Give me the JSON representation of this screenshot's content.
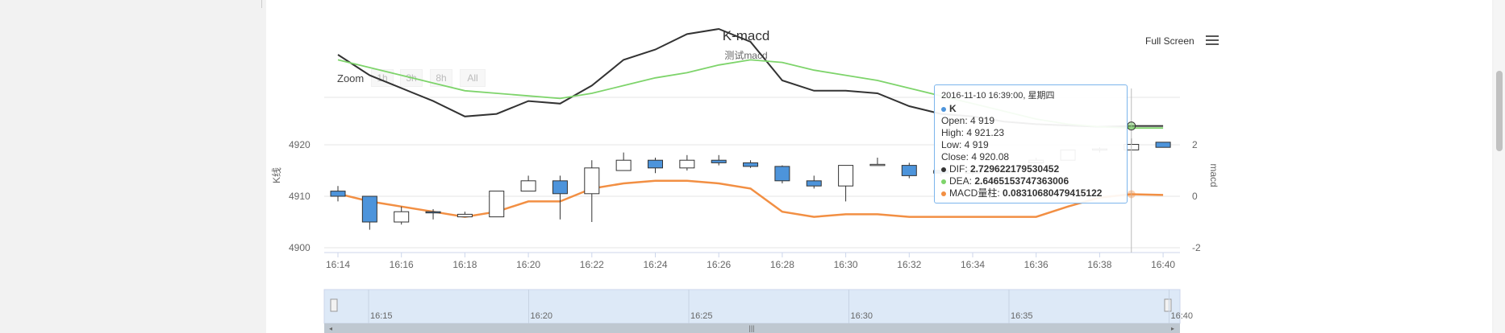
{
  "chart_data": {
    "type": "candlestick",
    "title": "K-macd",
    "subtitle": "测试macd",
    "toolbar": {
      "fullscreen_label": "Full Screen"
    },
    "zoom": {
      "label": "Zoom",
      "buttons": [
        "1h",
        "3h",
        "8h",
        "All"
      ]
    },
    "x_ticks": [
      "16:14",
      "16:16",
      "16:18",
      "16:20",
      "16:22",
      "16:24",
      "16:26",
      "16:28",
      "16:30",
      "16:32",
      "16:34",
      "16:36",
      "16:38",
      "16:40"
    ],
    "y_left": {
      "label": "K线",
      "ticks": [
        "4920",
        "4910",
        "4900"
      ],
      "range": [
        4900,
        4920
      ]
    },
    "y_right": {
      "label": "macd",
      "ticks": [
        "2",
        "0",
        "-2"
      ],
      "range": [
        -2,
        2
      ]
    },
    "candles": [
      {
        "time": "16:14",
        "open": 4911,
        "high": 4912,
        "low": 4909,
        "close": 4910
      },
      {
        "time": "16:15",
        "open": 4910,
        "high": 4910,
        "low": 4903.5,
        "close": 4905
      },
      {
        "time": "16:16",
        "open": 4905,
        "high": 4908,
        "low": 4904.5,
        "close": 4907
      },
      {
        "time": "16:17",
        "open": 4907,
        "high": 4907.5,
        "low": 4905.5,
        "close": 4906.8
      },
      {
        "time": "16:18",
        "open": 4906,
        "high": 4907,
        "low": 4906,
        "close": 4906.5
      },
      {
        "time": "16:19",
        "open": 4906,
        "high": 4911,
        "low": 4906,
        "close": 4911
      },
      {
        "time": "16:20",
        "open": 4911,
        "high": 4914,
        "low": 4911,
        "close": 4913
      },
      {
        "time": "16:21",
        "open": 4913,
        "high": 4914,
        "low": 4905.5,
        "close": 4910.5
      },
      {
        "time": "16:22",
        "open": 4910.5,
        "high": 4917,
        "low": 4905,
        "close": 4915.5
      },
      {
        "time": "16:23",
        "open": 4915,
        "high": 4918.5,
        "low": 4915,
        "close": 4917
      },
      {
        "time": "16:24",
        "open": 4917,
        "high": 4917.5,
        "low": 4914.5,
        "close": 4915.5
      },
      {
        "time": "16:25",
        "open": 4915.5,
        "high": 4918,
        "low": 4915,
        "close": 4917
      },
      {
        "time": "16:26",
        "open": 4917,
        "high": 4918,
        "low": 4916,
        "close": 4916.5
      },
      {
        "time": "16:27",
        "open": 4916.5,
        "high": 4917,
        "low": 4915.5,
        "close": 4915.8
      },
      {
        "time": "16:28",
        "open": 4915.8,
        "high": 4916,
        "low": 4912.5,
        "close": 4913
      },
      {
        "time": "16:29",
        "open": 4913,
        "high": 4914,
        "low": 4911.5,
        "close": 4912
      },
      {
        "time": "16:30",
        "open": 4912,
        "high": 4916,
        "low": 4909,
        "close": 4916
      },
      {
        "time": "16:31",
        "open": 4916,
        "high": 4917.5,
        "low": 4916,
        "close": 4916.2
      },
      {
        "time": "16:32",
        "open": 4916,
        "high": 4916.5,
        "low": 4913.5,
        "close": 4914
      },
      {
        "time": "16:33",
        "open": 4915,
        "high": 4915.5,
        "low": 4914,
        "close": 4914.5
      },
      {
        "time": "16:34",
        "open": 4914.5,
        "high": 4916,
        "low": 4914,
        "close": 4915
      },
      {
        "time": "16:35",
        "open": 4915,
        "high": 4916,
        "low": 4914.5,
        "close": 4915.5
      },
      {
        "time": "16:36",
        "open": 4916.5,
        "high": 4917.5,
        "low": 4916.5,
        "close": 4917
      },
      {
        "time": "16:37",
        "open": 4917,
        "high": 4919,
        "low": 4917,
        "close": 4919
      },
      {
        "time": "16:38",
        "open": 4919,
        "high": 4919.5,
        "low": 4918.5,
        "close": 4919.2
      },
      {
        "time": "16:39",
        "open": 4919,
        "high": 4921.23,
        "low": 4919,
        "close": 4920.08
      },
      {
        "time": "16:40",
        "open": 4920.5,
        "high": 4920.5,
        "low": 4919.5,
        "close": 4919.5
      }
    ],
    "dif": [
      5.5,
      4.7,
      4.2,
      3.7,
      3.1,
      3.2,
      3.7,
      3.6,
      4.3,
      5.3,
      5.7,
      6.3,
      6.5,
      6.0,
      4.5,
      4.1,
      4.1,
      4.0,
      3.5,
      3.2,
      3.1,
      2.9,
      2.8,
      2.75,
      2.7,
      2.73,
      2.73
    ],
    "dea": [
      5.3,
      5.0,
      4.7,
      4.4,
      4.1,
      4.0,
      3.9,
      3.8,
      4.0,
      4.3,
      4.6,
      4.8,
      5.1,
      5.3,
      5.2,
      4.9,
      4.7,
      4.5,
      4.2,
      3.9,
      3.6,
      3.3,
      3.0,
      2.8,
      2.7,
      2.65,
      2.65
    ],
    "macd": [
      0.1,
      -0.2,
      -0.4,
      -0.6,
      -0.8,
      -0.6,
      -0.2,
      -0.2,
      0.3,
      0.5,
      0.6,
      0.6,
      0.5,
      0.3,
      -0.6,
      -0.8,
      -0.7,
      -0.7,
      -0.8,
      -0.8,
      -0.8,
      -0.8,
      -0.8,
      -0.4,
      -0.05,
      0.08,
      0.05
    ],
    "colors": {
      "up": "#ffffff",
      "down": "#4d94db",
      "dif": "#333333",
      "dea": "#7ed46b",
      "macd": "#f28f43"
    },
    "tooltip": {
      "date": "2016-11-10 16:39:00, 星期四",
      "series_name": "K",
      "open": "Open: 4 919",
      "high": "High: 4 921.23",
      "low": "Low: 4 919",
      "close": "Close: 4 920.08",
      "dif_label": "DIF: ",
      "dif_value": "2.729622179530452",
      "dea_label": "DEA: ",
      "dea_value": "2.6465153747363006",
      "macd_label": "MACD量柱: ",
      "macd_value": "0.08310680479415122"
    },
    "navigator_ticks": [
      "16:15",
      "16:20",
      "16:25",
      "16:30",
      "16:35",
      "16:40"
    ]
  }
}
